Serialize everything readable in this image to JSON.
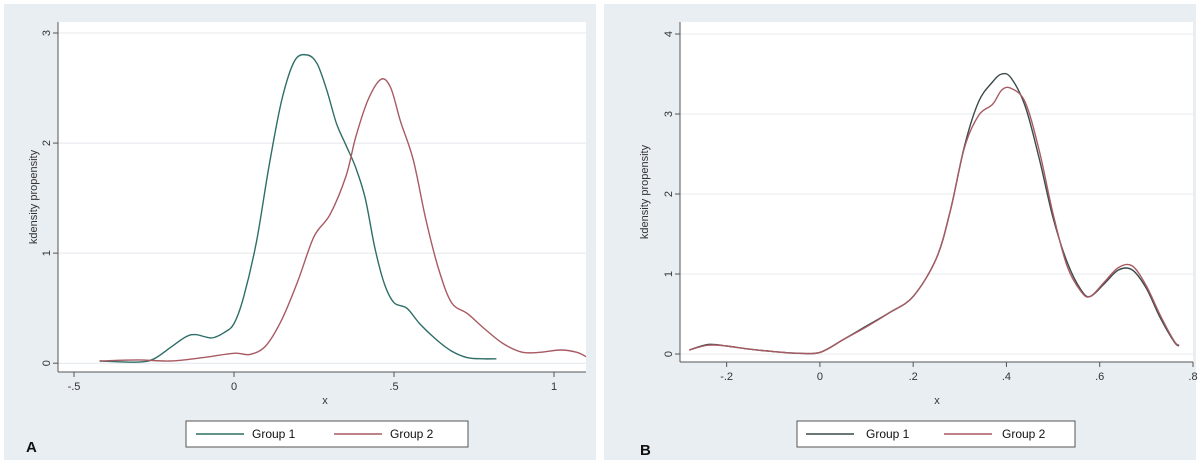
{
  "colors": {
    "group1": "#2e6e66",
    "group2": "#a85a62",
    "axis": "#555555",
    "panel_bg": "#e9eef3"
  },
  "chart_data": [
    {
      "type": "line",
      "panel": "A",
      "xlabel": "x",
      "ylabel": "kdensity propensity",
      "xlim": [
        -0.55,
        1.1
      ],
      "ylim": [
        -0.08,
        3.1
      ],
      "xticks": [
        -0.5,
        0,
        0.5,
        1
      ],
      "xtick_labels": [
        "-.5",
        "0",
        ".5",
        "1"
      ],
      "yticks": [
        0,
        1,
        2,
        3
      ],
      "ytick_labels": [
        "0",
        "1",
        "2",
        "3"
      ],
      "grid": true,
      "legend_position": "bottom",
      "series": [
        {
          "name": "Group 1",
          "color": "#2e6e66",
          "x": [
            -0.42,
            -0.3,
            -0.25,
            -0.2,
            -0.15,
            -0.12,
            -0.07,
            -0.03,
            0.0,
            0.03,
            0.07,
            0.11,
            0.15,
            0.19,
            0.23,
            0.26,
            0.29,
            0.32,
            0.35,
            0.38,
            0.41,
            0.44,
            0.47,
            0.5,
            0.54,
            0.58,
            0.63,
            0.68,
            0.73,
            0.78,
            0.82
          ],
          "y": [
            0.02,
            0.01,
            0.04,
            0.14,
            0.24,
            0.26,
            0.23,
            0.28,
            0.36,
            0.6,
            1.1,
            1.8,
            2.4,
            2.75,
            2.8,
            2.72,
            2.48,
            2.18,
            1.98,
            1.78,
            1.5,
            1.05,
            0.72,
            0.55,
            0.5,
            0.36,
            0.22,
            0.11,
            0.05,
            0.04,
            0.04
          ]
        },
        {
          "name": "Group 2",
          "color": "#a85a62",
          "x": [
            -0.42,
            -0.3,
            -0.2,
            -0.1,
            0.0,
            0.05,
            0.1,
            0.15,
            0.2,
            0.25,
            0.3,
            0.35,
            0.38,
            0.42,
            0.46,
            0.49,
            0.52,
            0.56,
            0.6,
            0.64,
            0.68,
            0.73,
            0.78,
            0.84,
            0.9,
            0.96,
            1.02,
            1.07,
            1.1
          ],
          "y": [
            0.02,
            0.03,
            0.02,
            0.05,
            0.09,
            0.08,
            0.16,
            0.4,
            0.75,
            1.15,
            1.35,
            1.7,
            2.05,
            2.4,
            2.58,
            2.5,
            2.2,
            1.85,
            1.3,
            0.85,
            0.55,
            0.45,
            0.32,
            0.18,
            0.1,
            0.1,
            0.12,
            0.1,
            0.06
          ]
        }
      ]
    },
    {
      "type": "line",
      "panel": "B",
      "xlabel": "x",
      "ylabel": "kdensity propensity",
      "xlim": [
        -0.3,
        0.8
      ],
      "ylim": [
        -0.1,
        4.15
      ],
      "xticks": [
        -0.2,
        0,
        0.2,
        0.4,
        0.6,
        0.8
      ],
      "xtick_labels": [
        "-.2",
        "0",
        ".2",
        ".4",
        ".6",
        ".8"
      ],
      "yticks": [
        0,
        1,
        2,
        3,
        4
      ],
      "ytick_labels": [
        "0",
        "1",
        "2",
        "3",
        "4"
      ],
      "grid": true,
      "legend_position": "bottom",
      "series": [
        {
          "name": "Group 1",
          "color": "#3a4a4a",
          "x": [
            -0.28,
            -0.24,
            -0.2,
            -0.15,
            -0.1,
            -0.05,
            0.0,
            0.05,
            0.1,
            0.15,
            0.2,
            0.25,
            0.28,
            0.31,
            0.34,
            0.37,
            0.39,
            0.41,
            0.44,
            0.47,
            0.5,
            0.53,
            0.56,
            0.58,
            0.61,
            0.64,
            0.67,
            0.7,
            0.73,
            0.76,
            0.77
          ],
          "y": [
            0.05,
            0.12,
            0.1,
            0.06,
            0.03,
            0.01,
            0.02,
            0.18,
            0.35,
            0.52,
            0.72,
            1.2,
            1.8,
            2.6,
            3.15,
            3.4,
            3.5,
            3.45,
            3.1,
            2.45,
            1.7,
            1.15,
            0.8,
            0.72,
            0.88,
            1.05,
            1.05,
            0.82,
            0.45,
            0.15,
            0.1
          ]
        },
        {
          "name": "Group 2",
          "color": "#a85a62",
          "x": [
            -0.28,
            -0.24,
            -0.2,
            -0.15,
            -0.1,
            -0.05,
            0.0,
            0.05,
            0.1,
            0.15,
            0.2,
            0.25,
            0.28,
            0.31,
            0.34,
            0.37,
            0.39,
            0.41,
            0.44,
            0.47,
            0.5,
            0.53,
            0.56,
            0.58,
            0.61,
            0.64,
            0.67,
            0.7,
            0.73,
            0.76,
            0.77
          ],
          "y": [
            0.05,
            0.11,
            0.1,
            0.06,
            0.03,
            0.01,
            0.02,
            0.18,
            0.34,
            0.52,
            0.72,
            1.2,
            1.8,
            2.58,
            2.98,
            3.12,
            3.3,
            3.32,
            3.15,
            2.55,
            1.75,
            1.1,
            0.78,
            0.72,
            0.9,
            1.08,
            1.1,
            0.85,
            0.48,
            0.16,
            0.11
          ]
        }
      ]
    }
  ],
  "panels": [
    {
      "letter": "A",
      "legend": [
        "Group 1",
        "Group 2"
      ],
      "xlabel": "x",
      "ylabel": "kdensity propensity"
    },
    {
      "letter": "B",
      "legend": [
        "Group 1",
        "Group 2"
      ],
      "xlabel": "x",
      "ylabel": "kdensity propensity"
    }
  ]
}
